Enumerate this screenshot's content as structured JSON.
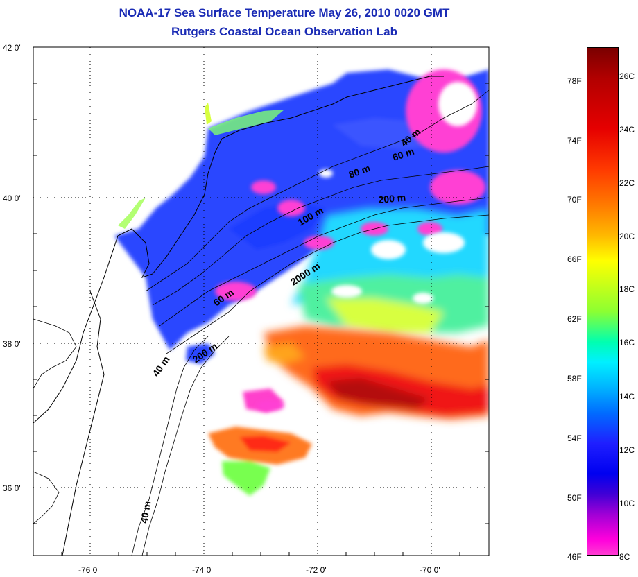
{
  "title_line1": "NOAA-17 Sea Surface Temperature May 26, 2010 0020 GMT",
  "title_line2": "Rutgers Coastal Ocean Observation Lab",
  "axes": {
    "lat_labels": [
      "42 0'",
      "40 0'",
      "38 0'",
      "36 0'"
    ],
    "lon_labels": [
      "-76 0'",
      "-74 0'",
      "-72 0'",
      "-70 0'"
    ]
  },
  "depth_labels": [
    "40 m",
    "60 m",
    "80 m",
    "200 m",
    "100 m",
    "2000 m",
    "60 m",
    "200 m",
    "40 m",
    "40 m"
  ],
  "colorbar": {
    "fahrenheit": [
      "78F",
      "74F",
      "70F",
      "66F",
      "62F",
      "58F",
      "54F",
      "50F",
      "46F"
    ],
    "celsius": [
      "26C",
      "24C",
      "22C",
      "20C",
      "18C",
      "16C",
      "14C",
      "12C",
      "10C",
      "8C"
    ]
  },
  "colors": {
    "title": "#1a2bb5",
    "grid": "#000000"
  }
}
